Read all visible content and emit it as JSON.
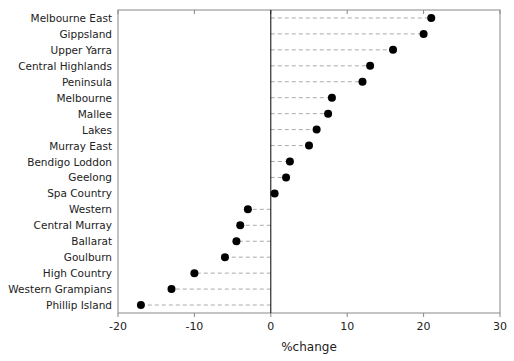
{
  "chart_data": {
    "type": "dot",
    "orientation": "horizontal",
    "categories": [
      "Melbourne East",
      "Gippsland",
      "Upper Yarra",
      "Central Highlands",
      "Peninsula",
      "Melbourne",
      "Mallee",
      "Lakes",
      "Murray East",
      "Bendigo Loddon",
      "Geelong",
      "Spa Country",
      "Western",
      "Central Murray",
      "Ballarat",
      "Goulburn",
      "High Country",
      "Western Grampians",
      "Phillip Island"
    ],
    "values": [
      21,
      20,
      16,
      13,
      12,
      8,
      7.5,
      6,
      5,
      2.5,
      2,
      0.5,
      -3,
      -4,
      -4.5,
      -6,
      -10,
      -13,
      -17
    ],
    "xlim": [
      -20,
      30
    ],
    "xticks": [
      -20,
      -10,
      0,
      10,
      20,
      30
    ],
    "xlabel": "%change",
    "color": "#000000",
    "line_style": "dashed",
    "grid": false
  }
}
